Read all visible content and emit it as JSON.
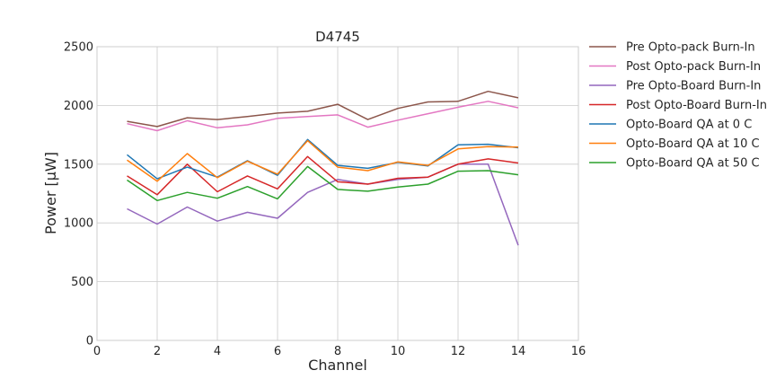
{
  "chart_data": {
    "type": "line",
    "title": "D4745",
    "xlabel": "Channel",
    "ylabel": "Power [μW]",
    "xlim": [
      0,
      16
    ],
    "ylim": [
      0,
      2500
    ],
    "xticks": [
      0,
      2,
      4,
      6,
      8,
      10,
      12,
      14,
      16
    ],
    "yticks": [
      0,
      500,
      1000,
      1500,
      2000,
      2500
    ],
    "grid": true,
    "legend_position": "outside right, top",
    "x": [
      1,
      2,
      3,
      4,
      5,
      6,
      7,
      8,
      9,
      10,
      11,
      12,
      13,
      14
    ],
    "series": [
      {
        "name": "Pre Opto-pack Burn-In",
        "color": "#8c564b",
        "values": [
          1865,
          1820,
          1895,
          1880,
          1905,
          1935,
          1950,
          2010,
          1880,
          1975,
          2030,
          2035,
          2120,
          2065
        ]
      },
      {
        "name": "Post Opto-pack Burn-In",
        "color": "#e377c2",
        "values": [
          1845,
          1785,
          1870,
          1810,
          1835,
          1890,
          1905,
          1920,
          1815,
          1875,
          1930,
          1985,
          2035,
          1980
        ]
      },
      {
        "name": "Pre Opto-Board Burn-In",
        "color": "#9467bd",
        "values": [
          1120,
          990,
          1135,
          1015,
          1090,
          1040,
          1260,
          1370,
          1330,
          1370,
          1390,
          1500,
          1500,
          810
        ]
      },
      {
        "name": "Post Opto-Board Burn-In",
        "color": "#d62728",
        "values": [
          1400,
          1240,
          1500,
          1265,
          1400,
          1290,
          1565,
          1350,
          1330,
          1380,
          1390,
          1500,
          1545,
          1510
        ]
      },
      {
        "name": "Opto-Board QA at 0 C",
        "color": "#1f77b4",
        "values": [
          1580,
          1375,
          1475,
          1390,
          1530,
          1405,
          1710,
          1490,
          1465,
          1515,
          1485,
          1665,
          1670,
          1640
        ]
      },
      {
        "name": "Opto-Board QA at 10 C",
        "color": "#ff7f0e",
        "values": [
          1535,
          1355,
          1590,
          1385,
          1525,
          1415,
          1700,
          1475,
          1445,
          1520,
          1490,
          1630,
          1650,
          1645
        ]
      },
      {
        "name": "Opto-Board QA at 50 C",
        "color": "#2ca02c",
        "values": [
          1365,
          1190,
          1260,
          1210,
          1310,
          1205,
          1480,
          1285,
          1270,
          1305,
          1330,
          1440,
          1445,
          1410
        ]
      }
    ]
  }
}
